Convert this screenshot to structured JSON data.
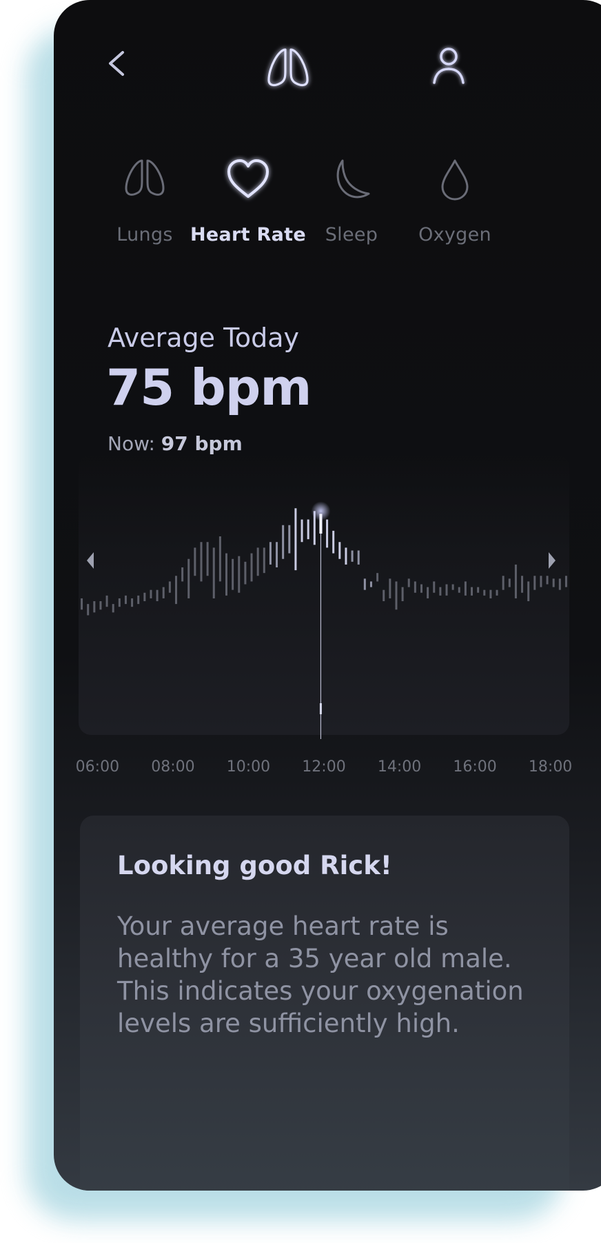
{
  "header": {
    "back_icon": "chevron-left-icon",
    "logo_icon": "lungs-icon",
    "profile_icon": "user-icon"
  },
  "tabs": [
    {
      "label": "Lungs",
      "icon": "lungs-icon",
      "active": false
    },
    {
      "label": "Heart Rate",
      "icon": "heart-icon",
      "active": true
    },
    {
      "label": "Sleep",
      "icon": "moon-icon",
      "active": false
    },
    {
      "label": "Oxygen",
      "icon": "drop-icon",
      "active": false
    }
  ],
  "summary": {
    "title": "Average Today",
    "value": "75 bpm",
    "now_label": "Now:",
    "now_value": "97 bpm"
  },
  "colors": {
    "accent": "#c9ccf5",
    "glow": "#5a5fd8",
    "page_glow": "#b7dde6"
  },
  "chart_data": {
    "type": "bar",
    "x_tick_labels": [
      "06:00",
      "08:00",
      "10:00",
      "12:00",
      "14:00",
      "16:00",
      "18:00"
    ],
    "xlim": [
      "05:30",
      "18:30"
    ],
    "ylim": [
      40,
      110
    ],
    "selected_time": "12:00",
    "ranges": [
      [
        60,
        64
      ],
      [
        58,
        62
      ],
      [
        59,
        63
      ],
      [
        60,
        63
      ],
      [
        61,
        65
      ],
      [
        59,
        62
      ],
      [
        61,
        64
      ],
      [
        62,
        65
      ],
      [
        61,
        64
      ],
      [
        62,
        65
      ],
      [
        63,
        66
      ],
      [
        64,
        67
      ],
      [
        63,
        67
      ],
      [
        64,
        68
      ],
      [
        66,
        70
      ],
      [
        62,
        72
      ],
      [
        70,
        75
      ],
      [
        64,
        78
      ],
      [
        72,
        82
      ],
      [
        70,
        84
      ],
      [
        72,
        84
      ],
      [
        64,
        82
      ],
      [
        70,
        86
      ],
      [
        65,
        80
      ],
      [
        67,
        78
      ],
      [
        66,
        79
      ],
      [
        69,
        77
      ],
      [
        70,
        80
      ],
      [
        72,
        82
      ],
      [
        73,
        82
      ],
      [
        76,
        84
      ],
      [
        75,
        84
      ],
      [
        78,
        90
      ],
      [
        80,
        90
      ],
      [
        74,
        96
      ],
      [
        84,
        92
      ],
      [
        85,
        92
      ],
      [
        83,
        95
      ],
      [
        87,
        94
      ],
      [
        82,
        92
      ],
      [
        80,
        88
      ],
      [
        78,
        84
      ],
      [
        76,
        82
      ],
      [
        77,
        81
      ],
      [
        76,
        81
      ],
      [
        67,
        71
      ],
      [
        68,
        70
      ],
      [
        70,
        73
      ],
      [
        63,
        67
      ],
      [
        64,
        71
      ],
      [
        60,
        70
      ],
      [
        63,
        68
      ],
      [
        68,
        71
      ],
      [
        66,
        70
      ],
      [
        66,
        69
      ],
      [
        64,
        68
      ],
      [
        66,
        70
      ],
      [
        65,
        68
      ],
      [
        65,
        69
      ],
      [
        67,
        69
      ],
      [
        66,
        68
      ],
      [
        65,
        70
      ],
      [
        65,
        68
      ],
      [
        66,
        68
      ],
      [
        65,
        67
      ],
      [
        64,
        67
      ],
      [
        65,
        67
      ],
      [
        67,
        72
      ],
      [
        68,
        71
      ],
      [
        64,
        76
      ],
      [
        66,
        72
      ],
      [
        63,
        70
      ],
      [
        67,
        72
      ],
      [
        68,
        72
      ],
      [
        69,
        72
      ],
      [
        68,
        71
      ],
      [
        67,
        71
      ],
      [
        68,
        72
      ]
    ]
  },
  "message": {
    "title": "Looking good Rick!",
    "body": "Your average heart rate is healthy for a 35 year old male. This indicates your oxygenation levels are sufficiently high."
  }
}
